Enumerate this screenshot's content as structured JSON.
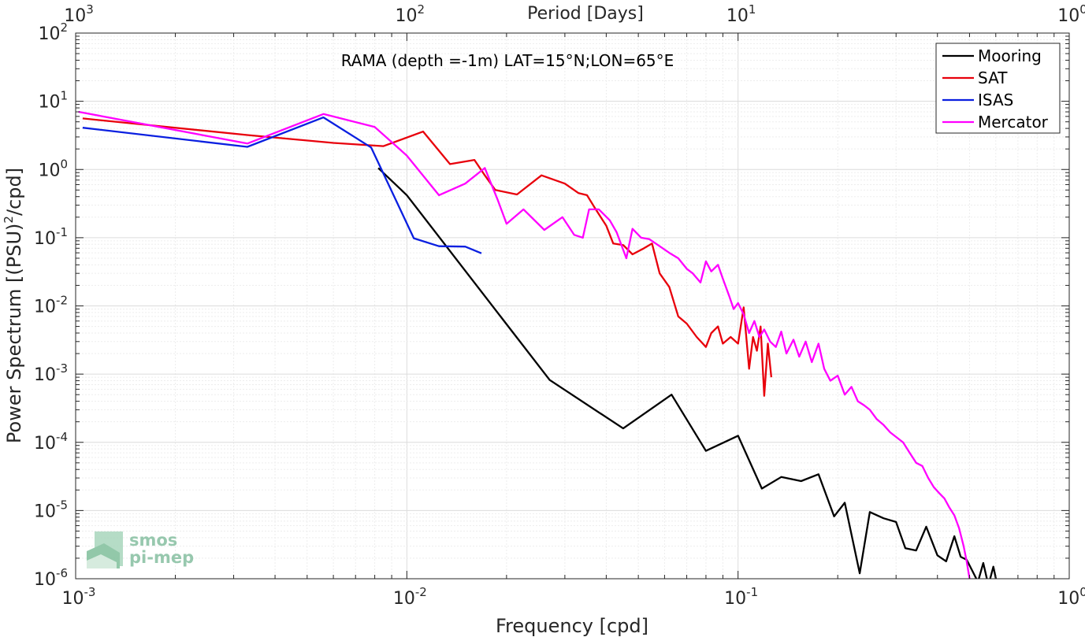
{
  "chart_data": {
    "type": "line",
    "title": "RAMA (depth =-1m) LAT=15°N;LON=65°E",
    "xlabel": "Frequency [cpd]",
    "x2label": "Period [Days]",
    "ylabel_main": "Power Spectrum [(PSU)",
    "ylabel_sup": "2",
    "ylabel_tail": "/cpd]",
    "x_scale": "log",
    "y_scale": "log",
    "xlim": [
      0.001,
      1
    ],
    "ylim": [
      1e-06,
      100
    ],
    "grid": true,
    "legend_position": "top-right",
    "x_ticks": [
      {
        "value": 0.001,
        "base": "10",
        "exp": "-3"
      },
      {
        "value": 0.01,
        "base": "10",
        "exp": "-2"
      },
      {
        "value": 0.1,
        "base": "10",
        "exp": "-1"
      },
      {
        "value": 1,
        "base": "10",
        "exp": "0"
      }
    ],
    "x2_ticks": [
      {
        "value": 0.001,
        "base": "10",
        "exp": "3"
      },
      {
        "value": 0.01,
        "base": "10",
        "exp": "2"
      },
      {
        "value": 0.1,
        "base": "10",
        "exp": "1"
      },
      {
        "value": 1,
        "base": "10",
        "exp": "0"
      }
    ],
    "y_ticks": [
      {
        "value": 1e-06,
        "base": "10",
        "exp": "-6"
      },
      {
        "value": 1e-05,
        "base": "10",
        "exp": "-5"
      },
      {
        "value": 0.0001,
        "base": "10",
        "exp": "-4"
      },
      {
        "value": 0.001,
        "base": "10",
        "exp": "-3"
      },
      {
        "value": 0.01,
        "base": "10",
        "exp": "-2"
      },
      {
        "value": 0.1,
        "base": "10",
        "exp": "-1"
      },
      {
        "value": 1,
        "base": "10",
        "exp": "0"
      },
      {
        "value": 10,
        "base": "10",
        "exp": "1"
      },
      {
        "value": 100,
        "base": "10",
        "exp": "2"
      }
    ],
    "series": [
      {
        "name": "Mooring",
        "color": "#000000",
        "points": [
          [
            0.0082,
            1.05
          ],
          [
            0.01,
            0.42
          ],
          [
            0.027,
            0.00082
          ],
          [
            0.045,
            0.00016
          ],
          [
            0.063,
            0.0005
          ],
          [
            0.08,
            7.5e-05
          ],
          [
            0.1,
            0.000125
          ],
          [
            0.118,
            2.1e-05
          ],
          [
            0.135,
            3.1e-05
          ],
          [
            0.155,
            2.7e-05
          ],
          [
            0.175,
            3.4e-05
          ],
          [
            0.195,
            8.2e-06
          ],
          [
            0.21,
            1.3e-05
          ],
          [
            0.233,
            1.2e-06
          ],
          [
            0.25,
            9.5e-06
          ],
          [
            0.275,
            7.7e-06
          ],
          [
            0.3,
            6.8e-06
          ],
          [
            0.32,
            2.8e-06
          ],
          [
            0.345,
            2.6e-06
          ],
          [
            0.37,
            5.8e-06
          ],
          [
            0.4,
            2.2e-06
          ],
          [
            0.425,
            1.8e-06
          ],
          [
            0.45,
            4.2e-06
          ],
          [
            0.47,
            2.1e-06
          ],
          [
            0.49,
            1.9e-06
          ],
          [
            0.51,
            1.3e-06
          ],
          [
            0.53,
            9e-07
          ],
          [
            0.55,
            1.7e-06
          ],
          [
            0.57,
            8e-07
          ],
          [
            0.59,
            1.5e-06
          ],
          [
            0.61,
            7e-07
          ]
        ]
      },
      {
        "name": "SAT",
        "color": "#e8000b",
        "points": [
          [
            0.00105,
            5.6
          ],
          [
            0.0033,
            3.2
          ],
          [
            0.006,
            2.45
          ],
          [
            0.0085,
            2.2
          ],
          [
            0.0112,
            3.6
          ],
          [
            0.0135,
            1.2
          ],
          [
            0.016,
            1.38
          ],
          [
            0.0172,
            0.82
          ],
          [
            0.0185,
            0.5
          ],
          [
            0.0215,
            0.43
          ],
          [
            0.0255,
            0.82
          ],
          [
            0.03,
            0.62
          ],
          [
            0.033,
            0.45
          ],
          [
            0.035,
            0.42
          ],
          [
            0.037,
            0.27
          ],
          [
            0.04,
            0.15
          ],
          [
            0.042,
            0.082
          ],
          [
            0.045,
            0.078
          ],
          [
            0.048,
            0.057
          ],
          [
            0.052,
            0.07
          ],
          [
            0.055,
            0.082
          ],
          [
            0.058,
            0.03
          ],
          [
            0.062,
            0.019
          ],
          [
            0.066,
            0.007
          ],
          [
            0.07,
            0.0055
          ],
          [
            0.075,
            0.0035
          ],
          [
            0.08,
            0.0025
          ],
          [
            0.083,
            0.004
          ],
          [
            0.087,
            0.005
          ],
          [
            0.09,
            0.0028
          ],
          [
            0.095,
            0.0035
          ],
          [
            0.1,
            0.0028
          ],
          [
            0.104,
            0.0095
          ],
          [
            0.108,
            0.0012
          ],
          [
            0.111,
            0.0035
          ],
          [
            0.114,
            0.0022
          ],
          [
            0.117,
            0.005
          ],
          [
            0.12,
            0.00048
          ],
          [
            0.123,
            0.0028
          ],
          [
            0.126,
            0.0009
          ]
        ]
      },
      {
        "name": "ISAS",
        "color": "#0a1fe0",
        "points": [
          [
            0.00105,
            4.1
          ],
          [
            0.0033,
            2.15
          ],
          [
            0.0056,
            5.8
          ],
          [
            0.0078,
            2.1
          ],
          [
            0.0105,
            0.098
          ],
          [
            0.0125,
            0.075
          ],
          [
            0.015,
            0.074
          ],
          [
            0.0168,
            0.059
          ]
        ]
      },
      {
        "name": "Mercator",
        "color": "#ff00ff",
        "points": [
          [
            0.00102,
            7
          ],
          [
            0.0033,
            2.4
          ],
          [
            0.0056,
            6.5
          ],
          [
            0.008,
            4.2
          ],
          [
            0.01,
            1.6
          ],
          [
            0.0125,
            0.42
          ],
          [
            0.015,
            0.62
          ],
          [
            0.0172,
            1.05
          ],
          [
            0.0188,
            0.36
          ],
          [
            0.02,
            0.16
          ],
          [
            0.0225,
            0.26
          ],
          [
            0.026,
            0.13
          ],
          [
            0.0295,
            0.2
          ],
          [
            0.032,
            0.11
          ],
          [
            0.034,
            0.1
          ],
          [
            0.0355,
            0.26
          ],
          [
            0.038,
            0.26
          ],
          [
            0.041,
            0.18
          ],
          [
            0.043,
            0.12
          ],
          [
            0.046,
            0.05
          ],
          [
            0.048,
            0.135
          ],
          [
            0.051,
            0.1
          ],
          [
            0.054,
            0.095
          ],
          [
            0.058,
            0.075
          ],
          [
            0.062,
            0.06
          ],
          [
            0.066,
            0.05
          ],
          [
            0.07,
            0.035
          ],
          [
            0.073,
            0.03
          ],
          [
            0.077,
            0.022
          ],
          [
            0.08,
            0.045
          ],
          [
            0.083,
            0.032
          ],
          [
            0.087,
            0.04
          ],
          [
            0.09,
            0.025
          ],
          [
            0.094,
            0.014
          ],
          [
            0.097,
            0.009
          ],
          [
            0.1,
            0.011
          ],
          [
            0.104,
            0.0075
          ],
          [
            0.108,
            0.004
          ],
          [
            0.112,
            0.006
          ],
          [
            0.116,
            0.0035
          ],
          [
            0.12,
            0.0045
          ],
          [
            0.125,
            0.003
          ],
          [
            0.13,
            0.0025
          ],
          [
            0.135,
            0.0042
          ],
          [
            0.14,
            0.002
          ],
          [
            0.147,
            0.0032
          ],
          [
            0.153,
            0.0018
          ],
          [
            0.16,
            0.003
          ],
          [
            0.167,
            0.0015
          ],
          [
            0.175,
            0.0028
          ],
          [
            0.182,
            0.0012
          ],
          [
            0.19,
            0.0008
          ],
          [
            0.2,
            0.00095
          ],
          [
            0.21,
            0.0005
          ],
          [
            0.22,
            0.00065
          ],
          [
            0.23,
            0.0004
          ],
          [
            0.24,
            0.00035
          ],
          [
            0.25,
            0.0003
          ],
          [
            0.262,
            0.00022
          ],
          [
            0.275,
            0.00018
          ],
          [
            0.288,
            0.00014
          ],
          [
            0.3,
            0.00012
          ],
          [
            0.315,
            0.0001
          ],
          [
            0.33,
            7e-05
          ],
          [
            0.345,
            5e-05
          ],
          [
            0.36,
            4.5e-05
          ],
          [
            0.375,
            3e-05
          ],
          [
            0.39,
            2.2e-05
          ],
          [
            0.405,
            1.8e-05
          ],
          [
            0.42,
            1.5e-05
          ],
          [
            0.435,
            1.1e-05
          ],
          [
            0.45,
            8.5e-06
          ],
          [
            0.465,
            5.5e-06
          ],
          [
            0.48,
            3e-06
          ],
          [
            0.49,
            1.8e-06
          ],
          [
            0.5,
            1e-06
          ]
        ]
      }
    ]
  },
  "logo": {
    "line1": "smos",
    "line2": "pi-mep"
  }
}
